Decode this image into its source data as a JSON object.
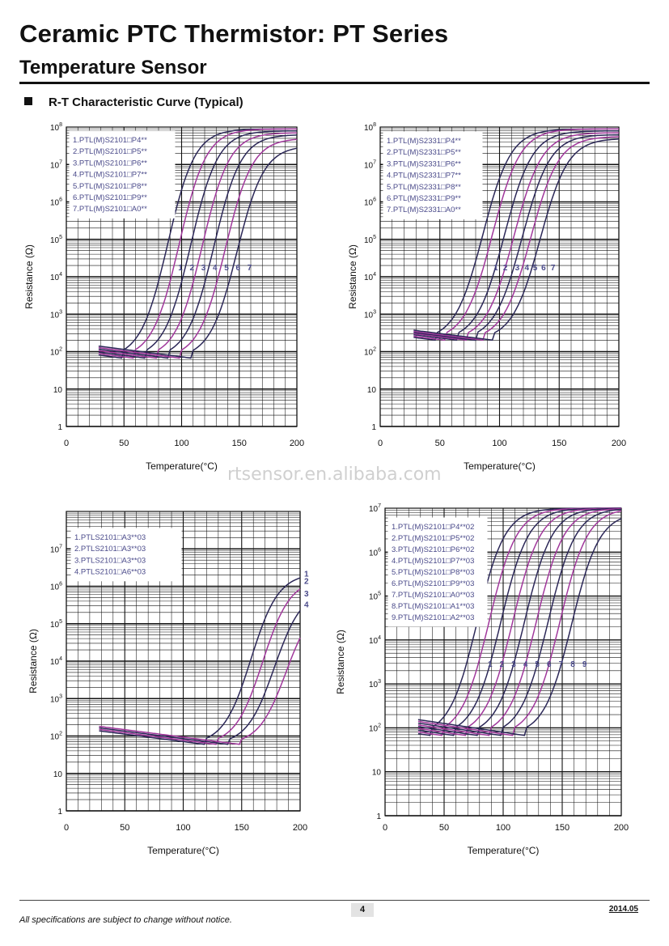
{
  "header": {
    "title": "Ceramic PTC Thermistor: PT Series",
    "subtitle": "Temperature Sensor"
  },
  "section_title": "R-T Characteristic Curve (Typical)",
  "watermark": "rtsensor.en.alibaba.com",
  "footer": {
    "page_number": "4",
    "date": "2014.05",
    "notice": "All specifications are subject to change without notice."
  },
  "colors": {
    "dark": "#2b2757",
    "pink": "#a0379b",
    "legend_text": "#4a4a8a"
  },
  "chart_data": [
    {
      "type": "line",
      "xlabel": "Temperature(°C)",
      "ylabel": "Resistance (Ω)",
      "xlim": [
        0,
        200
      ],
      "ylim_decades": [
        0,
        8
      ],
      "x_ticks": [
        "0",
        "50",
        "100",
        "150",
        "200"
      ],
      "y_ticks": [
        {
          "base": "1",
          "exp": ""
        },
        {
          "base": "10",
          "exp": ""
        },
        {
          "base": "10",
          "exp": "2"
        },
        {
          "base": "10",
          "exp": "3"
        },
        {
          "base": "10",
          "exp": "4"
        },
        {
          "base": "10",
          "exp": "5"
        },
        {
          "base": "10",
          "exp": "6"
        },
        {
          "base": "10",
          "exp": "7"
        },
        {
          "base": "10",
          "exp": "8"
        }
      ],
      "legend": [
        "1.PTL(M)S2101□P4**",
        "2.PTL(M)S2101□P5**",
        "3.PTL(M)S2101□P6**",
        "4.PTL(M)S2101□P7**",
        "5.PTL(M)S2101□P8**",
        "6.PTL(M)S2101□P9**",
        "7.PTL(M)S2101□A0**"
      ],
      "curve_labels": [
        "1",
        "2",
        "3",
        "4",
        "5",
        "6",
        "7"
      ],
      "series": [
        {
          "name": "1",
          "base_log": 1.82,
          "x_switch": 70,
          "top_log": 7.95
        },
        {
          "name": "2",
          "base_log": 1.82,
          "x_switch": 80,
          "top_log": 7.95
        },
        {
          "name": "3",
          "base_log": 1.82,
          "x_switch": 90,
          "top_log": 7.9
        },
        {
          "name": "4",
          "base_log": 1.82,
          "x_switch": 100,
          "top_log": 7.85
        },
        {
          "name": "5",
          "base_log": 1.82,
          "x_switch": 110,
          "top_log": 7.8
        },
        {
          "name": "6",
          "base_log": 1.82,
          "x_switch": 120,
          "top_log": 7.7
        },
        {
          "name": "7",
          "base_log": 1.82,
          "x_switch": 130,
          "top_log": 7.5
        }
      ]
    },
    {
      "type": "line",
      "xlabel": "Temperature(°C)",
      "ylabel": "Resistance (Ω)",
      "xlim": [
        0,
        200
      ],
      "ylim_decades": [
        0,
        8
      ],
      "x_ticks": [
        "0",
        "50",
        "100",
        "150",
        "200"
      ],
      "y_ticks": [
        {
          "base": "1",
          "exp": ""
        },
        {
          "base": "10",
          "exp": ""
        },
        {
          "base": "10",
          "exp": "2"
        },
        {
          "base": "10",
          "exp": "3"
        },
        {
          "base": "10",
          "exp": "4"
        },
        {
          "base": "10",
          "exp": "5"
        },
        {
          "base": "10",
          "exp": "6"
        },
        {
          "base": "10",
          "exp": "7"
        },
        {
          "base": "10",
          "exp": "8"
        }
      ],
      "legend": [
        "1.PTL(M)S2331□P4**",
        "2.PTL(M)S2331□P5**",
        "3.PTL(M)S2331□P6**",
        "4.PTL(M)S2331□P7**",
        "5.PTL(M)S2331□P8**",
        "6.PTL(M)S2331□P9**",
        "7.PTL(M)S2331□A0**"
      ],
      "curve_labels": [
        "1",
        "2",
        "3",
        "4",
        "5",
        "6",
        "7"
      ],
      "series": [
        {
          "name": "1",
          "base_log": 2.3,
          "x_switch": 68,
          "top_log": 7.95
        },
        {
          "name": "2",
          "base_log": 2.3,
          "x_switch": 76,
          "top_log": 7.95
        },
        {
          "name": "3",
          "base_log": 2.3,
          "x_switch": 86,
          "top_log": 7.9
        },
        {
          "name": "4",
          "base_log": 2.3,
          "x_switch": 94,
          "top_log": 7.85
        },
        {
          "name": "5",
          "base_log": 2.3,
          "x_switch": 101,
          "top_log": 7.8
        },
        {
          "name": "6",
          "base_log": 2.3,
          "x_switch": 108,
          "top_log": 7.75
        },
        {
          "name": "7",
          "base_log": 2.3,
          "x_switch": 116,
          "top_log": 7.7
        }
      ]
    },
    {
      "type": "line",
      "xlabel": "Temperature(°C)",
      "ylabel": "Resistance (Ω)",
      "xlim": [
        0,
        200
      ],
      "ylim_decades": [
        0,
        8
      ],
      "x_ticks": [
        "0",
        "50",
        "100",
        "150",
        "200"
      ],
      "y_ticks": [
        {
          "base": "1",
          "exp": ""
        },
        {
          "base": "10",
          "exp": ""
        },
        {
          "base": "10",
          "exp": "2"
        },
        {
          "base": "10",
          "exp": "3"
        },
        {
          "base": "10",
          "exp": "4"
        },
        {
          "base": "10",
          "exp": "5"
        },
        {
          "base": "10",
          "exp": "6"
        },
        {
          "base": "10",
          "exp": "7"
        }
      ],
      "legend": [
        "1.PTLS2101□A3**03",
        "2.PTLS2101□A3**03",
        "3.PTLS2101□A3**03",
        "4.PTLS2101□A6**03"
      ],
      "curve_labels": [
        "1",
        "2",
        "3",
        "4"
      ],
      "series": [
        {
          "name": "1",
          "base_log": 1.77,
          "x_switch": 140,
          "top_log": 6.35
        },
        {
          "name": "2",
          "base_log": 1.77,
          "x_switch": 150,
          "top_log": 6.2
        },
        {
          "name": "3",
          "base_log": 1.77,
          "x_switch": 160,
          "top_log": 5.9
        },
        {
          "name": "4",
          "base_log": 1.77,
          "x_switch": 170,
          "top_log": 5.65
        }
      ]
    },
    {
      "type": "line",
      "xlabel": "Temperature(°C)",
      "ylabel": "Resistance (Ω)",
      "xlim": [
        0,
        200
      ],
      "ylim_decades": [
        0,
        7
      ],
      "x_ticks": [
        "0",
        "50",
        "100",
        "150",
        "200"
      ],
      "y_ticks": [
        {
          "base": "1",
          "exp": ""
        },
        {
          "base": "10",
          "exp": ""
        },
        {
          "base": "10",
          "exp": "2"
        },
        {
          "base": "10",
          "exp": "3"
        },
        {
          "base": "10",
          "exp": "4"
        },
        {
          "base": "10",
          "exp": "5"
        },
        {
          "base": "10",
          "exp": "6"
        },
        {
          "base": "10",
          "exp": "7"
        }
      ],
      "legend": [
        "1.PTL(M)S2101□P4**02",
        "2.PTL(M)S2101□P5**02",
        "3.PTL(M)S2101□P6**02",
        "4.PTL(M)S2101□P7**03",
        "5.PTL(M)S2101□P8**03",
        "6.PTL(M)S2101□P9**03",
        "7.PTL(M)S2101□A0**03",
        "8.PTL(M)S2101□A1**03",
        "9.PTL(M)S2101□A2**03"
      ],
      "curve_labels": [
        "1",
        "2",
        "3",
        "4",
        "5",
        "6",
        "7",
        "8",
        "9"
      ],
      "series": [
        {
          "name": "1",
          "base_log": 1.82,
          "x_switch": 60,
          "top_log": 7
        },
        {
          "name": "2",
          "base_log": 1.82,
          "x_switch": 70,
          "top_log": 7
        },
        {
          "name": "3",
          "base_log": 1.82,
          "x_switch": 80,
          "top_log": 7
        },
        {
          "name": "4",
          "base_log": 1.82,
          "x_switch": 90,
          "top_log": 7
        },
        {
          "name": "5",
          "base_log": 1.82,
          "x_switch": 100,
          "top_log": 7
        },
        {
          "name": "6",
          "base_log": 1.82,
          "x_switch": 110,
          "top_log": 7
        },
        {
          "name": "7",
          "base_log": 1.82,
          "x_switch": 120,
          "top_log": 7
        },
        {
          "name": "8",
          "base_log": 1.82,
          "x_switch": 130,
          "top_log": 7
        },
        {
          "name": "9",
          "base_log": 1.82,
          "x_switch": 140,
          "top_log": 6.9
        }
      ]
    }
  ]
}
